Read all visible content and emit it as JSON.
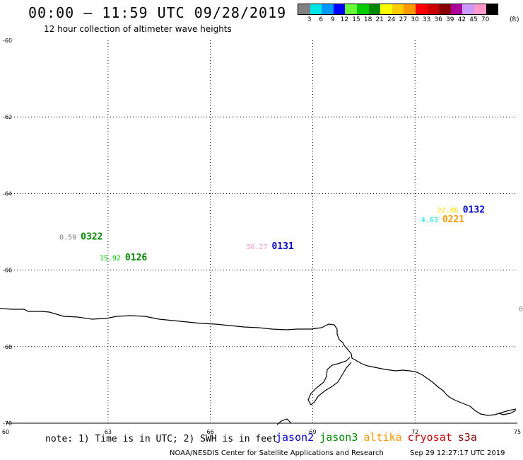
{
  "header": {
    "title": "00:00 – 11:59 UTC 09/28/2019",
    "subtitle": "12 hour collection of altimeter wave heights"
  },
  "legend": {
    "unit": "(ft)",
    "bins": [
      {
        "label": "3",
        "color": "#808080"
      },
      {
        "label": "6",
        "color": "#00e6e6"
      },
      {
        "label": "9",
        "color": "#0099ff"
      },
      {
        "label": "12",
        "color": "#0000ff"
      },
      {
        "label": "15",
        "color": "#66ff33"
      },
      {
        "label": "18",
        "color": "#00cc00"
      },
      {
        "label": "21",
        "color": "#008800"
      },
      {
        "label": "24",
        "color": "#ffff00"
      },
      {
        "label": "27",
        "color": "#ffcc00"
      },
      {
        "label": "30",
        "color": "#ff9900"
      },
      {
        "label": "33",
        "color": "#ff0000"
      },
      {
        "label": "36",
        "color": "#cc0000"
      },
      {
        "label": "39",
        "color": "#880000"
      },
      {
        "label": "42",
        "color": "#aa0099"
      },
      {
        "label": "45",
        "color": "#cc99ff"
      },
      {
        "label": "70",
        "color": "#ff99cc"
      },
      {
        "label": "",
        "color": "#000000"
      }
    ]
  },
  "map": {
    "lon_range": [
      60,
      75
    ],
    "lat_range": [
      -70,
      -60
    ],
    "lon_ticks": [
      "60",
      "63",
      "66",
      "69",
      "72",
      "75"
    ],
    "lat_ticks": [
      "-60",
      "-62",
      "-64",
      "-66",
      "-68",
      "-70"
    ],
    "observations": [
      {
        "lon": 62.2,
        "lat": -65.2,
        "swh": "0.59",
        "swh_color": "#808080",
        "time": "0322",
        "time_color": "#008800"
      },
      {
        "lon": 63.5,
        "lat": -65.75,
        "swh": "15.92",
        "swh_color": "#00cc00",
        "time": "0126",
        "time_color": "#008800"
      },
      {
        "lon": 67.8,
        "lat": -65.45,
        "swh": "50.27",
        "swh_color": "#ff99cc",
        "time": "0131",
        "time_color": "#0000cc"
      },
      {
        "lon": 73.4,
        "lat": -64.5,
        "swh": "22.86",
        "swh_color": "#ffdd00",
        "time": "0132",
        "time_color": "#0000cc"
      },
      {
        "lon": 72.8,
        "lat": -64.75,
        "swh": "4.63",
        "swh_color": "#00e6e6",
        "time": "0221",
        "time_color": "#ff9900"
      }
    ],
    "edge_label": "0"
  },
  "footer": {
    "note": "note: 1) Time is in UTC; 2) SWH is in feet",
    "satellites": [
      {
        "name": "jason2",
        "color": "#0000cc"
      },
      {
        "name": "jason3",
        "color": "#008800"
      },
      {
        "name": "altika",
        "color": "#ff9900"
      },
      {
        "name": "cryosat",
        "color": "#cc0000"
      },
      {
        "name": "s3a",
        "color": "#880000"
      }
    ],
    "credit": "NOAA/NESDIS Center for Satellite Applications and Research",
    "timestamp": "Sep 29 12:27:17 UTC 2019"
  }
}
